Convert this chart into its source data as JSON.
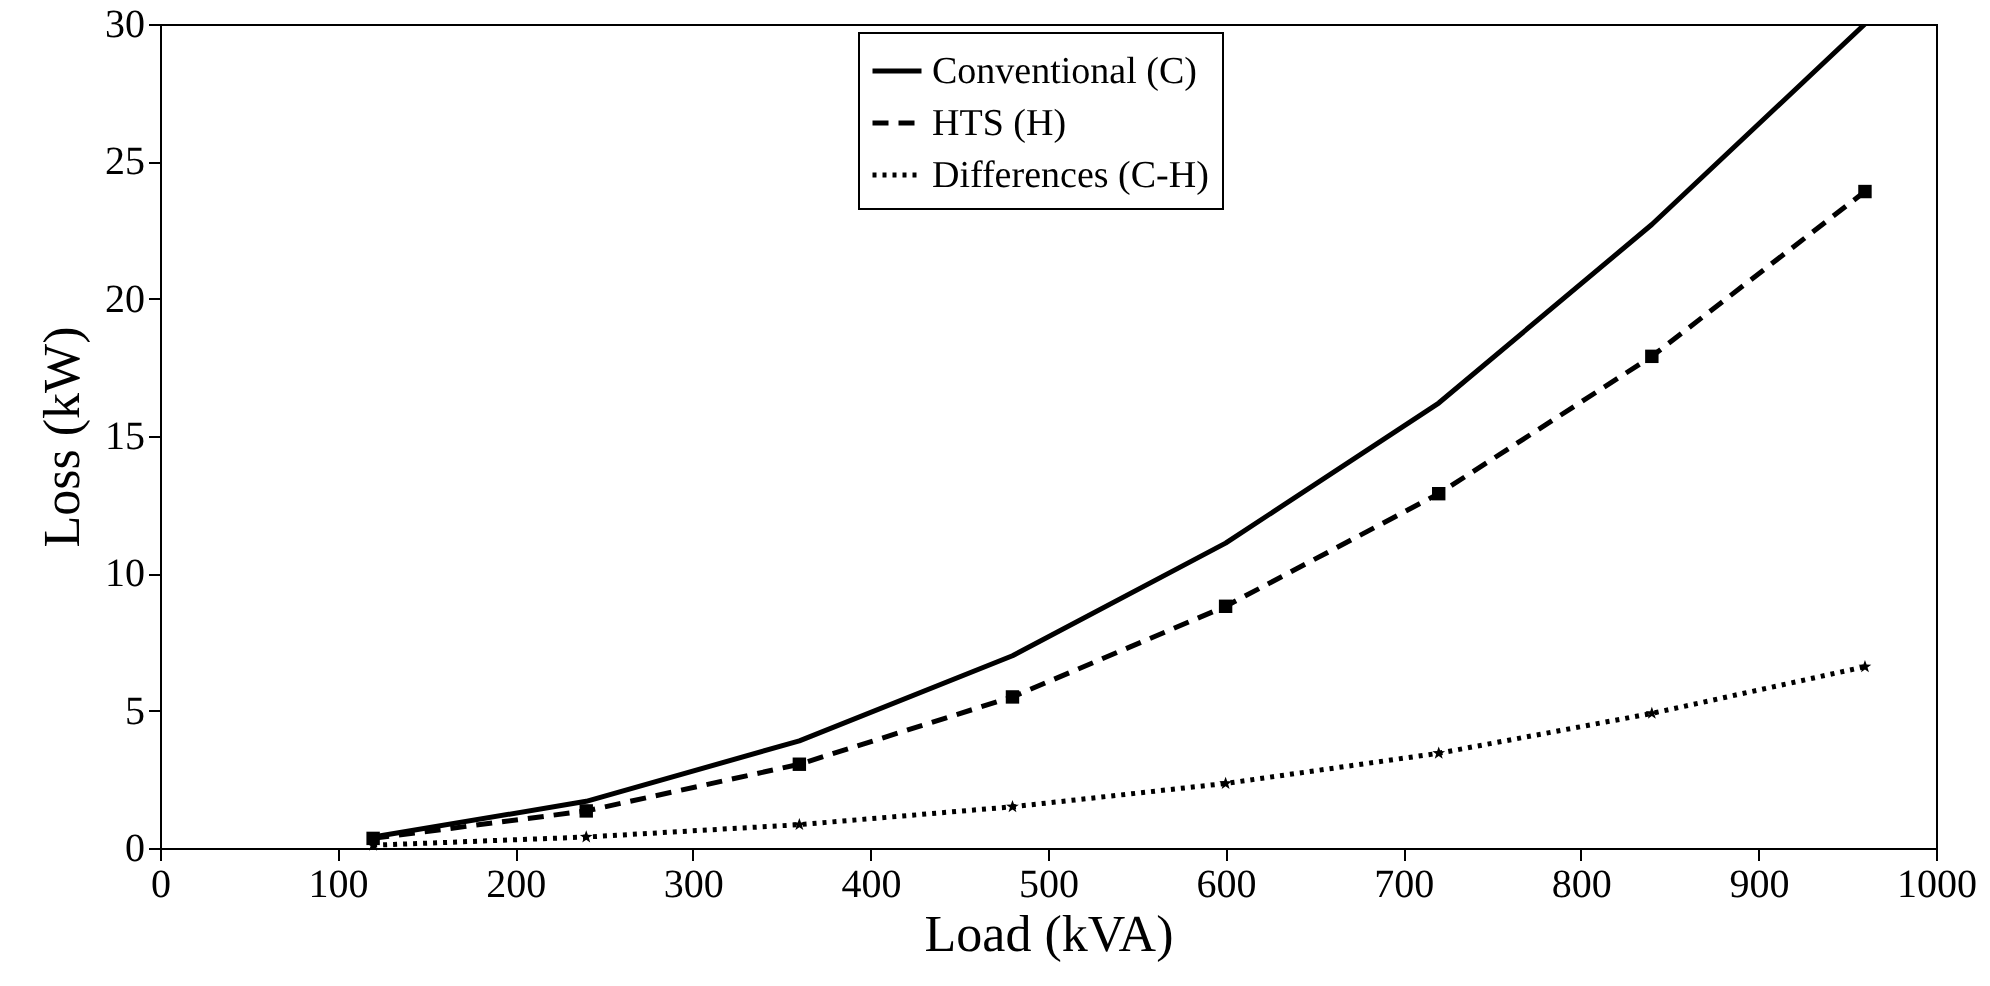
{
  "chart_data": {
    "type": "line",
    "xlabel": "Load (kVA)",
    "ylabel": "Loss (kW)",
    "x": [
      120,
      240,
      360,
      480,
      600,
      720,
      840,
      960
    ],
    "series": [
      {
        "name": "Conventional (C)",
        "color": "#000000",
        "line_style": "solid",
        "marker": "none",
        "values": [
          0.4,
          1.7,
          3.9,
          7.0,
          11.1,
          16.2,
          22.7,
          30
        ]
      },
      {
        "name": "HTS (H)",
        "color": "#000000",
        "line_style": "dashed",
        "marker": "square",
        "values": [
          0.35,
          1.35,
          3.05,
          5.5,
          8.8,
          12.9,
          17.9,
          23.9
        ]
      },
      {
        "name": "Differences (C-H)",
        "color": "#000000",
        "line_style": "dotted",
        "marker": "star",
        "values": [
          0.1,
          0.4,
          0.85,
          1.5,
          2.35,
          3.45,
          4.9,
          6.6
        ]
      }
    ],
    "xlim": [
      0,
      1000
    ],
    "xticks": [
      0,
      100,
      200,
      300,
      400,
      500,
      600,
      700,
      800,
      900,
      1000
    ],
    "ylim": [
      0,
      30
    ],
    "yticks": [
      0,
      5,
      10,
      15,
      20,
      25,
      30
    ],
    "grid": false,
    "legend": "top"
  }
}
